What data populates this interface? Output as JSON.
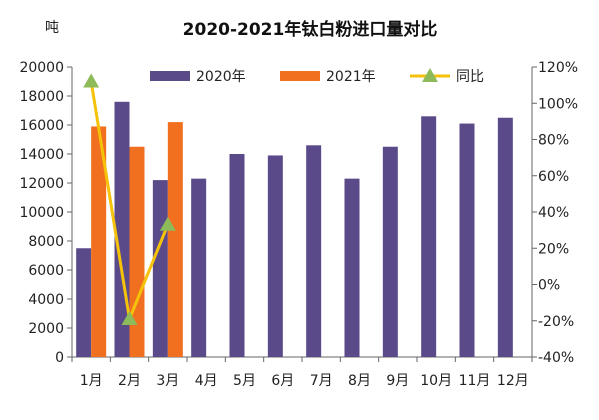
{
  "chart_data": {
    "type": "bar",
    "title": "2020-2021年钛白粉进口量对比",
    "ylabel": "吨",
    "categories": [
      "1月",
      "2月",
      "3月",
      "4月",
      "5月",
      "6月",
      "7月",
      "8月",
      "9月",
      "10月",
      "11月",
      "12月"
    ],
    "y_left": {
      "min": 0,
      "max": 20000,
      "step": 2000,
      "ticks": [
        "0",
        "2000",
        "4000",
        "6000",
        "8000",
        "10000",
        "12000",
        "14000",
        "16000",
        "18000",
        "20000"
      ]
    },
    "y_right": {
      "min": -40,
      "max": 120,
      "step": 20,
      "ticks": [
        "-40%",
        "-20%",
        "0%",
        "20%",
        "40%",
        "60%",
        "80%",
        "100%",
        "120%"
      ]
    },
    "series": [
      {
        "name": "2020年",
        "kind": "bar",
        "color": "#5b4a8a",
        "values": [
          7500,
          17600,
          12200,
          12300,
          14000,
          13900,
          14600,
          12300,
          14500,
          16600,
          16100,
          16500
        ]
      },
      {
        "name": "2021年",
        "kind": "bar",
        "color": "#f07020",
        "values": [
          15900,
          14500,
          16200,
          null,
          null,
          null,
          null,
          null,
          null,
          null,
          null,
          null
        ]
      },
      {
        "name": "同比",
        "kind": "line",
        "axis": "right",
        "color": "#f5c20a",
        "marker_color": "#8dbb5a",
        "values": [
          112,
          -19,
          33,
          null,
          null,
          null,
          null,
          null,
          null,
          null,
          null,
          null
        ]
      }
    ],
    "legend": {
      "placement": "top"
    },
    "grid": false
  }
}
